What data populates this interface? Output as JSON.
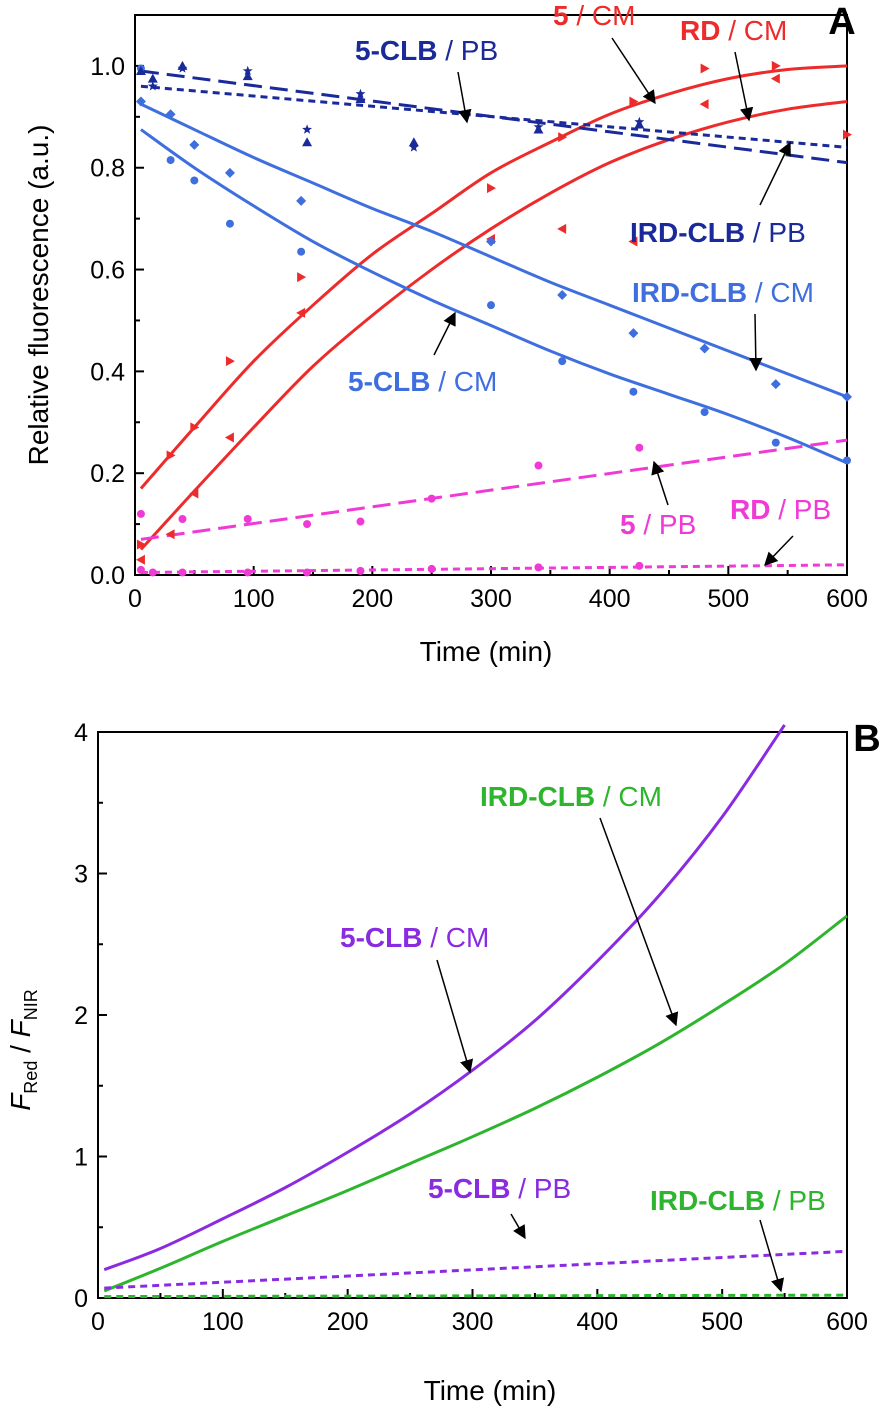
{
  "chart_data": [
    {
      "panel_label": "A",
      "type": "line",
      "xlabel": "Time (min)",
      "ylabel": "Relative fluorescence (a.u.)",
      "xlim": [
        0,
        600
      ],
      "ylim": [
        0,
        1.1
      ],
      "xticks": [
        "0",
        "100",
        "200",
        "300",
        "400",
        "500",
        "600"
      ],
      "yticks": [
        "0.0",
        "0.2",
        "0.4",
        "0.6",
        "0.8",
        "1.0"
      ],
      "colors": {
        "red": "#ee2b2b",
        "blue": "#3f6fde",
        "navy": "#1a2a9a",
        "magenta": "#f03ad6"
      },
      "series": [
        {
          "name": "5 / CM",
          "color": "#ee2b2b",
          "dash": "solid",
          "fit": {
            "x": [
              5,
              50,
              100,
              150,
              200,
              250,
              300,
              350,
              400,
              450,
              500,
              550,
              600
            ],
            "y": [
              0.17,
              0.29,
              0.42,
              0.53,
              0.63,
              0.71,
              0.79,
              0.85,
              0.905,
              0.945,
              0.975,
              0.993,
              1.0
            ]
          },
          "points": {
            "x": [
              5,
              30,
              50,
              80,
              140,
              300,
              360,
              420,
              480,
              540,
              600
            ],
            "y": [
              0.06,
              0.235,
              0.29,
              0.42,
              0.585,
              0.76,
              0.86,
              0.93,
              0.995,
              1.0,
              0.865
            ]
          }
        },
        {
          "name": "RD / CM",
          "color": "#ee2b2b",
          "dash": "solid",
          "fit": {
            "x": [
              5,
              50,
              100,
              150,
              200,
              250,
              300,
              350,
              400,
              450,
              500,
              550,
              600
            ],
            "y": [
              0.05,
              0.165,
              0.29,
              0.41,
              0.51,
              0.6,
              0.68,
              0.75,
              0.81,
              0.855,
              0.89,
              0.915,
              0.93
            ]
          },
          "points": {
            "x": [
              5,
              30,
              50,
              80,
              140,
              300,
              360,
              420,
              480,
              540
            ],
            "y": [
              0.03,
              0.08,
              0.16,
              0.27,
              0.515,
              0.66,
              0.68,
              0.655,
              0.925,
              0.975
            ]
          }
        },
        {
          "name": "5-CLB / CM",
          "color": "#3f6fde",
          "dash": "solid",
          "fit": {
            "x": [
              5,
              50,
              100,
              150,
              200,
              250,
              300,
              350,
              400,
              450,
              500,
              550,
              600
            ],
            "y": [
              0.875,
              0.8,
              0.725,
              0.655,
              0.595,
              0.54,
              0.49,
              0.44,
              0.395,
              0.355,
              0.315,
              0.27,
              0.22
            ]
          },
          "points": {
            "x": [
              5,
              30,
              50,
              80,
              140,
              300,
              360,
              420,
              480,
              540,
              600
            ],
            "y": [
              0.995,
              0.815,
              0.775,
              0.69,
              0.635,
              0.53,
              0.42,
              0.36,
              0.32,
              0.26,
              0.225
            ]
          }
        },
        {
          "name": "IRD-CLB / CM",
          "color": "#3f6fde",
          "dash": "solid",
          "fit": {
            "x": [
              5,
              50,
              100,
              150,
              200,
              250,
              300,
              350,
              400,
              450,
              500,
              550,
              600
            ],
            "y": [
              0.925,
              0.875,
              0.82,
              0.77,
              0.72,
              0.675,
              0.625,
              0.575,
              0.53,
              0.485,
              0.44,
              0.395,
              0.35
            ]
          },
          "points": {
            "x": [
              5,
              30,
              50,
              80,
              140,
              300,
              360,
              420,
              480,
              540,
              600
            ],
            "y": [
              0.93,
              0.905,
              0.845,
              0.79,
              0.735,
              0.655,
              0.55,
              0.475,
              0.445,
              0.375,
              0.35
            ]
          }
        },
        {
          "name": "5-CLB / PB",
          "color": "#1a2a9a",
          "dash": "long",
          "fit": {
            "x": [
              5,
              600
            ],
            "y": [
              0.99,
              0.81
            ]
          },
          "points": {
            "x": [
              5,
              15,
              40,
              95,
              145,
              190,
              235,
              340,
              425
            ],
            "y": [
              0.99,
              0.975,
              1.0,
              0.98,
              0.85,
              0.935,
              0.85,
              0.875,
              0.885
            ]
          }
        },
        {
          "name": "IRD-CLB / PB",
          "color": "#1a2a9a",
          "dash": "short",
          "fit": {
            "x": [
              5,
              600
            ],
            "y": [
              0.96,
              0.84
            ]
          },
          "points": {
            "x": [
              15,
              40,
              95,
              145,
              190,
              235,
              340,
              425
            ],
            "y": [
              0.96,
              0.995,
              0.99,
              0.875,
              0.945,
              0.84,
              0.88,
              0.89
            ]
          }
        },
        {
          "name": "5 / PB",
          "color": "#f03ad6",
          "dash": "long",
          "fit": {
            "x": [
              5,
              600
            ],
            "y": [
              0.07,
              0.265
            ]
          },
          "points": {
            "x": [
              5,
              40,
              95,
              145,
              190,
              250,
              340,
              425
            ],
            "y": [
              0.12,
              0.11,
              0.11,
              0.1,
              0.105,
              0.15,
              0.215,
              0.25
            ]
          }
        },
        {
          "name": "RD / PB",
          "color": "#f03ad6",
          "dash": "short",
          "fit": {
            "x": [
              5,
              600
            ],
            "y": [
              0.005,
              0.02
            ]
          },
          "points": {
            "x": [
              5,
              15,
              40,
              95,
              145,
              190,
              250,
              340,
              425
            ],
            "y": [
              0.01,
              0.005,
              0.005,
              0.005,
              0.005,
              0.008,
              0.012,
              0.015,
              0.018
            ]
          }
        }
      ],
      "annotations": [
        {
          "bold": "5-CLB",
          "rest": " / PB",
          "color": "#1a2a9a"
        },
        {
          "bold": "5",
          "rest": " / CM",
          "color": "#ee2b2b"
        },
        {
          "bold": "RD",
          "rest": " / CM",
          "color": "#ee2b2b"
        },
        {
          "bold": "IRD-CLB",
          "rest": " / PB",
          "color": "#1a2a9a"
        },
        {
          "bold": "IRD-CLB",
          "rest": " / CM",
          "color": "#3f6fde"
        },
        {
          "bold": "5-CLB",
          "rest": " / CM",
          "color": "#3f6fde"
        },
        {
          "bold": "5",
          "rest": " / PB",
          "color": "#f03ad6"
        },
        {
          "bold": "RD",
          "rest": " / PB",
          "color": "#f03ad6"
        }
      ]
    },
    {
      "panel_label": "B",
      "type": "line",
      "xlabel": "Time (min)",
      "ylabel": "F_Red / F_NIR",
      "ylabel_parts": {
        "f": "F",
        "sub1": "Red",
        "slash": " / ",
        "sub2": "NIR"
      },
      "xlim": [
        0,
        600
      ],
      "ylim": [
        0,
        4
      ],
      "xticks": [
        "0",
        "100",
        "200",
        "300",
        "400",
        "500",
        "600"
      ],
      "yticks": [
        "0",
        "1",
        "2",
        "3",
        "4"
      ],
      "colors": {
        "purple": "#8a2be2",
        "green": "#2db52d"
      },
      "series": [
        {
          "name": "5-CLB / CM",
          "color": "#8a2be2",
          "dash": "solid",
          "x": [
            5,
            50,
            100,
            150,
            200,
            250,
            300,
            350,
            400,
            450,
            500,
            550
          ],
          "y": [
            0.2,
            0.35,
            0.56,
            0.78,
            1.03,
            1.3,
            1.61,
            1.96,
            2.38,
            2.85,
            3.4,
            4.05
          ]
        },
        {
          "name": "IRD-CLB / CM",
          "color": "#2db52d",
          "dash": "solid",
          "x": [
            5,
            50,
            100,
            150,
            200,
            250,
            300,
            350,
            400,
            450,
            500,
            550,
            600
          ],
          "y": [
            0.05,
            0.21,
            0.4,
            0.58,
            0.76,
            0.95,
            1.14,
            1.34,
            1.56,
            1.8,
            2.07,
            2.36,
            2.7
          ]
        },
        {
          "name": "5-CLB / PB",
          "color": "#8a2be2",
          "dash": "short",
          "x": [
            5,
            600
          ],
          "y": [
            0.07,
            0.33
          ]
        },
        {
          "name": "IRD-CLB / PB",
          "color": "#2db52d",
          "dash": "short",
          "x": [
            5,
            600
          ],
          "y": [
            0.01,
            0.02
          ]
        }
      ],
      "annotations": [
        {
          "bold": "IRD-CLB",
          "rest": " / CM",
          "color": "#2db52d"
        },
        {
          "bold": "5-CLB",
          "rest": " / CM",
          "color": "#8a2be2"
        },
        {
          "bold": "5-CLB",
          "rest": " / PB",
          "color": "#8a2be2"
        },
        {
          "bold": "IRD-CLB",
          "rest": " / PB",
          "color": "#2db52d"
        }
      ]
    }
  ]
}
